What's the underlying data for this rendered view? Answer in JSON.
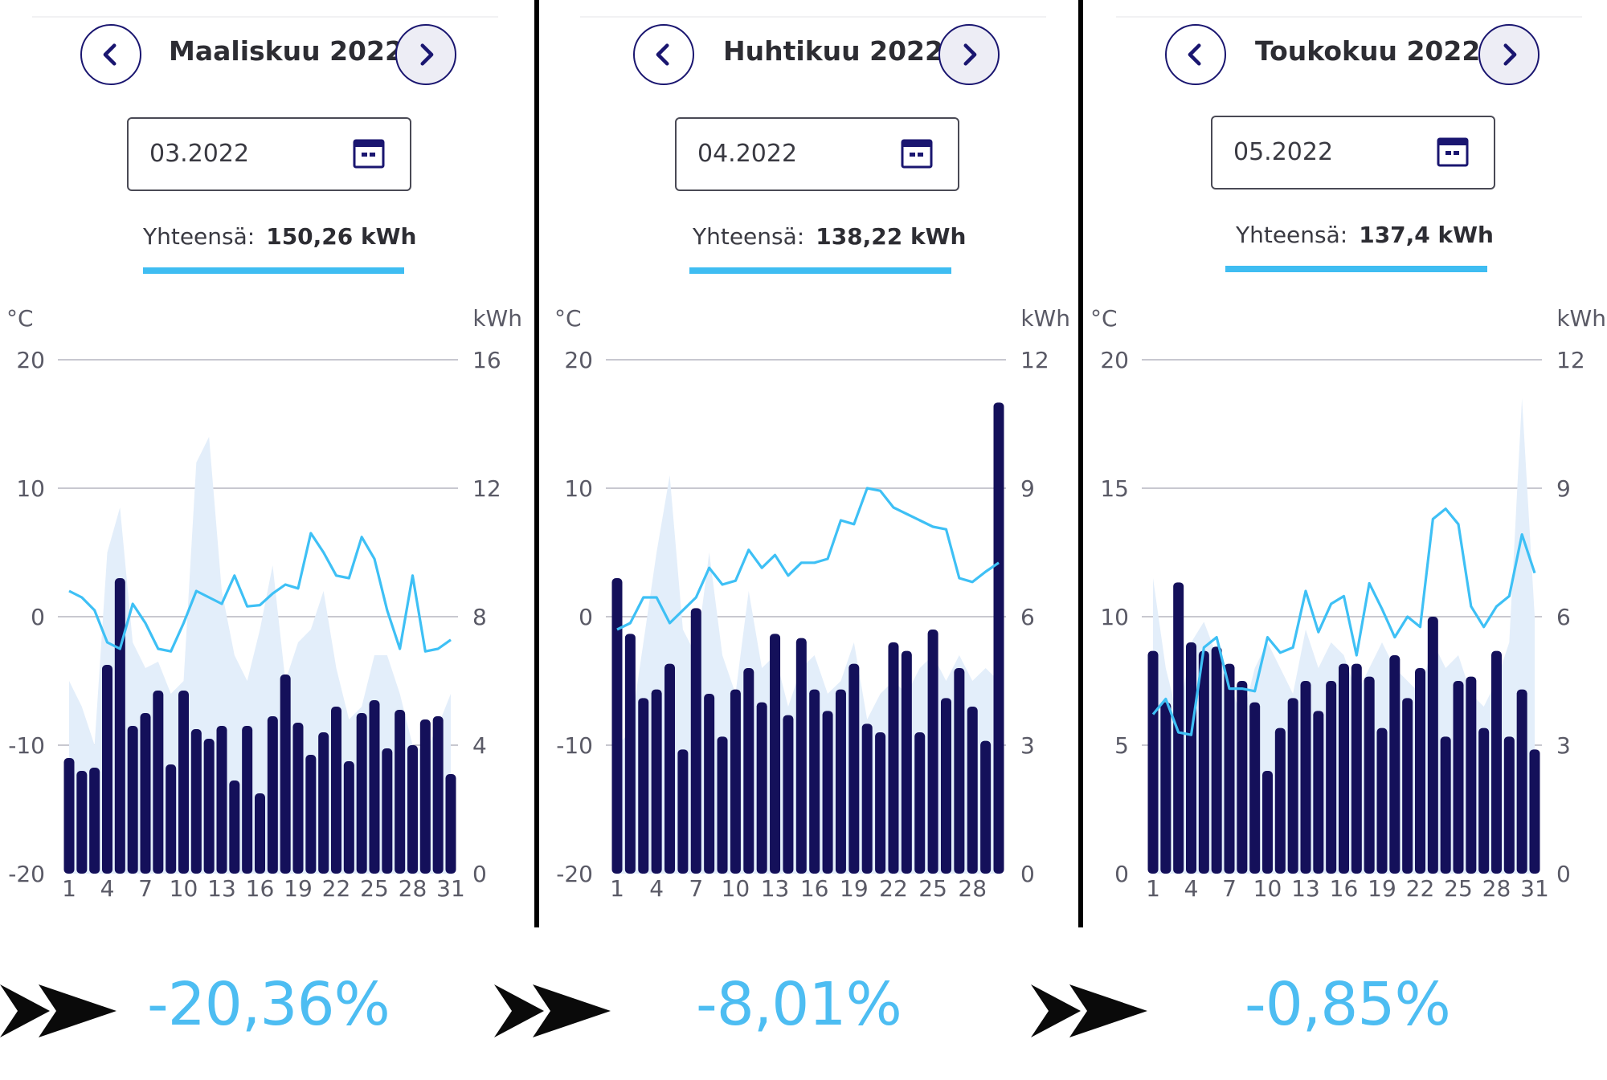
{
  "colors": {
    "bar": "#14105a",
    "line": "#3ec0f5",
    "area": "#e3eefa",
    "accent": "#4dbdf2",
    "nav": "#1a1670"
  },
  "icons": {
    "prev": "chevron-left-icon",
    "next": "chevron-right-icon",
    "calendar": "calendar-icon",
    "arrow": "double-arrow-icon"
  },
  "panels": [
    {
      "title": "Maaliskuu 2022",
      "date": "03.2022",
      "total_label": "Yhteensä:",
      "total_value": "150,26 kWh",
      "change": "-20,36%"
    },
    {
      "title": "Huhtikuu 2022",
      "date": "04.2022",
      "total_label": "Yhteensä:",
      "total_value": "138,22 kWh",
      "change": "-8,01%"
    },
    {
      "title": "Toukokuu 2022",
      "date": "05.2022",
      "total_label": "Yhteensä:",
      "total_value": "137,4 kWh",
      "change": "-0,85%"
    }
  ],
  "chart_data": [
    {
      "type": "bar",
      "left_unit": "°C",
      "right_unit": "kWh",
      "left_ticks": [
        "20",
        "10",
        "0",
        "-10",
        "-20"
      ],
      "right_ticks": [
        "16",
        "12",
        "8",
        "4",
        "0"
      ],
      "x_ticks": [
        "1",
        "4",
        "7",
        "10",
        "13",
        "16",
        "19",
        "22",
        "25",
        "28",
        "31"
      ],
      "temp_range": [
        -20,
        20
      ],
      "kwh_range": [
        0,
        16
      ],
      "grid": true,
      "series": [
        {
          "values": [
            3.6,
            3.2,
            3.3,
            6.5,
            9.2,
            4.6,
            5.0,
            5.7,
            3.4,
            5.7,
            4.5,
            4.2,
            4.6,
            2.9,
            4.6,
            2.5,
            4.9,
            6.2,
            4.7,
            3.7,
            4.4,
            5.2,
            3.5,
            5.0,
            5.4,
            3.9,
            5.1,
            4.0,
            4.8,
            4.9,
            3.1
          ]
        },
        {
          "values": [
            2.0,
            1.5,
            0.5,
            -2.0,
            -2.5,
            1.0,
            -0.5,
            -2.5,
            -2.7,
            -0.5,
            2.0,
            1.5,
            1.0,
            3.2,
            0.8,
            0.9,
            1.8,
            2.5,
            2.2,
            6.5,
            5.0,
            3.2,
            3.0,
            6.2,
            4.5,
            0.5,
            -2.5,
            3.2,
            -2.7,
            -2.5,
            -1.8
          ]
        },
        {
          "values": [
            -5.0,
            -7.0,
            -10.0,
            5.0,
            8.5,
            -2.0,
            -4.0,
            -3.5,
            -6.0,
            -5.0,
            12.0,
            14.0,
            2.0,
            -3.0,
            -5.0,
            -1.0,
            4.0,
            -5.0,
            -2.0,
            -1.0,
            2.0,
            -4.0,
            -8.0,
            -7.0,
            -3.0,
            -3.0,
            -6.0,
            -10.0,
            -10.5,
            -8.5,
            -6.0
          ]
        }
      ]
    },
    {
      "type": "bar",
      "left_unit": "°C",
      "right_unit": "kWh",
      "left_ticks": [
        "20",
        "10",
        "0",
        "-10",
        "-20"
      ],
      "right_ticks": [
        "12",
        "9",
        "6",
        "3",
        "0"
      ],
      "x_ticks": [
        "1",
        "4",
        "7",
        "10",
        "13",
        "16",
        "19",
        "22",
        "25",
        "28"
      ],
      "temp_range": [
        -20,
        20
      ],
      "kwh_range": [
        0,
        12
      ],
      "grid": true,
      "series": [
        {
          "values": [
            6.9,
            5.6,
            4.1,
            4.3,
            4.9,
            2.9,
            6.2,
            4.2,
            3.2,
            4.3,
            4.8,
            4.0,
            5.6,
            3.7,
            5.5,
            4.3,
            3.8,
            4.3,
            4.9,
            3.5,
            3.3,
            5.4,
            5.2,
            3.3,
            5.7,
            4.1,
            4.8,
            3.9,
            3.1,
            11.0
          ]
        },
        {
          "values": [
            -1.0,
            -0.5,
            1.5,
            1.5,
            -0.5,
            0.5,
            1.5,
            3.8,
            2.5,
            2.8,
            5.2,
            3.8,
            4.8,
            3.2,
            4.2,
            4.2,
            4.5,
            7.5,
            7.2,
            10.0,
            9.8,
            8.5,
            8.0,
            7.5,
            7.0,
            6.8,
            3.0,
            2.7,
            3.5,
            4.2
          ]
        },
        {
          "values": [
            -10.0,
            -9.0,
            -2.0,
            5.0,
            11.0,
            -1.0,
            -3.0,
            5.0,
            -3.0,
            -6.0,
            2.0,
            -4.0,
            -3.0,
            -7.0,
            -4.0,
            -3.0,
            -6.0,
            -5.0,
            -2.0,
            -8.0,
            -6.0,
            -5.0,
            -6.0,
            -4.0,
            -3.0,
            -5.0,
            -3.0,
            -5.0,
            -4.0,
            -5.0
          ]
        }
      ]
    },
    {
      "type": "bar",
      "left_unit": "°C",
      "right_unit": "kWh",
      "left_ticks": [
        "20",
        "15",
        "10",
        "5",
        "0"
      ],
      "right_ticks": [
        "12",
        "9",
        "6",
        "3",
        "0"
      ],
      "x_ticks": [
        "1",
        "4",
        "7",
        "10",
        "13",
        "16",
        "19",
        "22",
        "25",
        "28",
        "31"
      ],
      "temp_range": [
        0,
        20
      ],
      "kwh_range": [
        0,
        12
      ],
      "grid": true,
      "series": [
        {
          "values": [
            5.2,
            4.0,
            6.8,
            5.4,
            5.2,
            5.3,
            4.9,
            4.5,
            4.0,
            2.4,
            3.4,
            4.1,
            4.5,
            3.8,
            4.5,
            4.9,
            4.9,
            4.6,
            3.4,
            5.1,
            4.1,
            4.8,
            6.0,
            3.2,
            4.5,
            4.6,
            3.4,
            5.2,
            3.2,
            4.3,
            2.9
          ]
        },
        {
          "values": [
            6.2,
            6.8,
            5.5,
            5.4,
            8.8,
            9.2,
            7.2,
            7.2,
            7.1,
            9.2,
            8.6,
            8.8,
            11.0,
            9.4,
            10.5,
            10.8,
            8.5,
            11.3,
            10.3,
            9.2,
            10.0,
            9.6,
            13.8,
            14.2,
            13.6,
            10.4,
            9.6,
            10.4,
            10.8,
            13.2,
            11.7
          ]
        },
        {
          "values": [
            11.5,
            8.0,
            6.0,
            9.0,
            9.8,
            8.5,
            7.5,
            6.0,
            8.0,
            9.0,
            8.0,
            7.0,
            9.5,
            8.0,
            9.0,
            8.5,
            7.0,
            8.0,
            9.0,
            8.0,
            7.5,
            7.0,
            9.0,
            8.0,
            8.5,
            7.0,
            6.5,
            7.5,
            9.0,
            18.5,
            10.0
          ]
        }
      ]
    }
  ]
}
